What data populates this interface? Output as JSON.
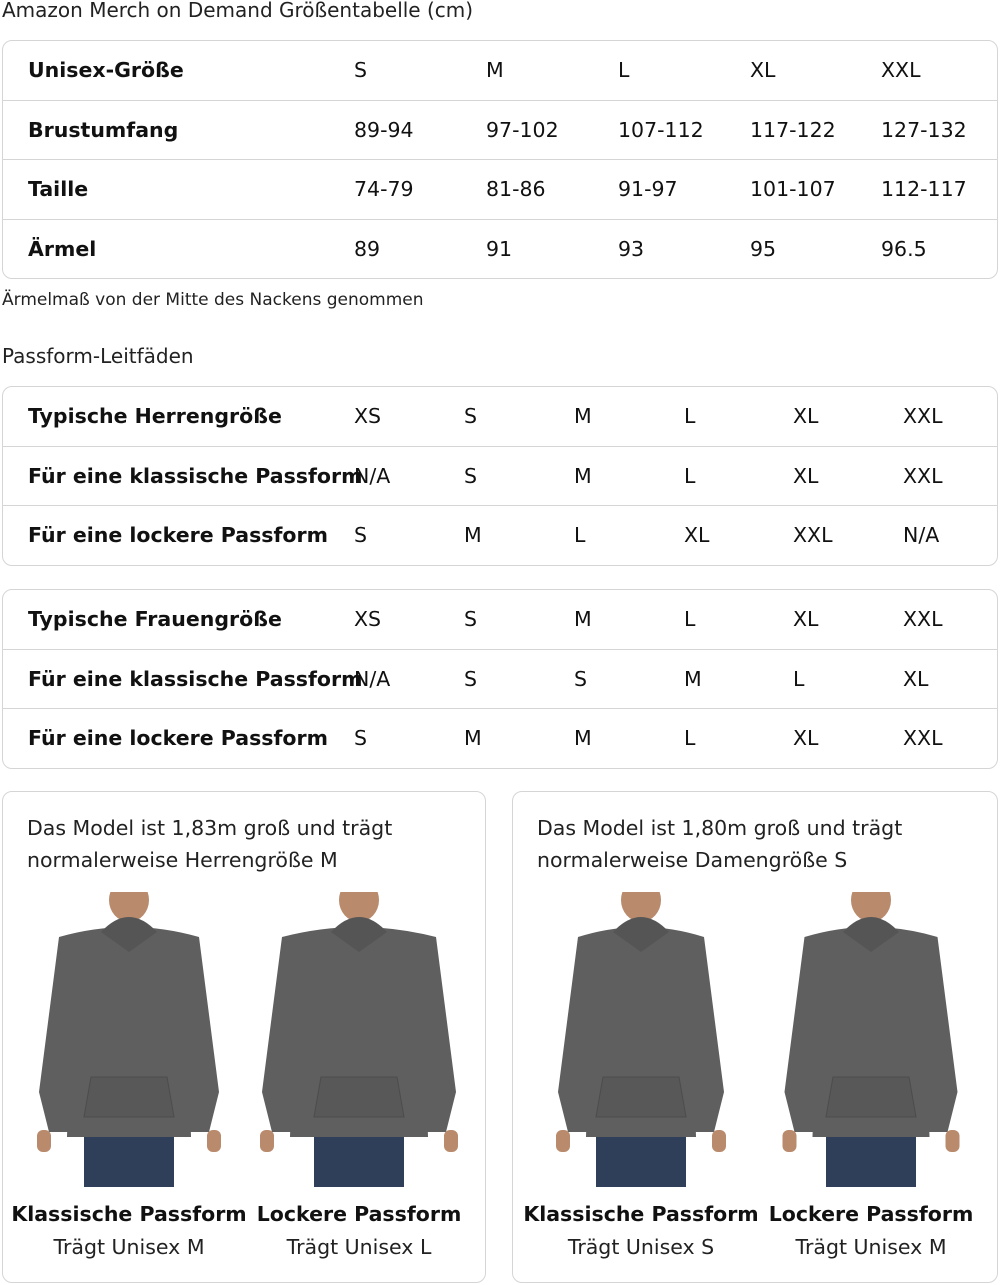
{
  "title": "Amazon Merch on Demand Größentabelle (cm)",
  "size_table": {
    "rows": [
      [
        "Unisex-Größe",
        "S",
        "M",
        "L",
        "XL",
        "XXL"
      ],
      [
        "Brustumfang",
        "89-94",
        "97-102",
        "107-112",
        "117-122",
        "127-132"
      ],
      [
        "Taille",
        "74-79",
        "81-86",
        "91-97",
        "101-107",
        "112-117"
      ],
      [
        "Ärmel",
        "89",
        "91",
        "93",
        "95",
        "96.5"
      ]
    ]
  },
  "sleeve_note": "Ärmelmaß von der Mitte des Nackens genommen",
  "fit_guides_title": "Passform-Leitfäden",
  "men_table": {
    "rows": [
      [
        "Typische Herrengröße",
        "XS",
        "S",
        "M",
        "L",
        "XL",
        "XXL"
      ],
      [
        "Für eine klassische Passform",
        "N/A",
        "S",
        "M",
        "L",
        "XL",
        "XXL"
      ],
      [
        "Für eine lockere Passform",
        "S",
        "M",
        "L",
        "XL",
        "XXL",
        "N/A"
      ]
    ]
  },
  "women_table": {
    "rows": [
      [
        "Typische Frauengröße",
        "XS",
        "S",
        "M",
        "L",
        "XL",
        "XXL"
      ],
      [
        "Für eine klassische Passform",
        "N/A",
        "S",
        "S",
        "M",
        "L",
        "XL"
      ],
      [
        "Für eine lockere Passform",
        "S",
        "M",
        "M",
        "L",
        "XL",
        "XXL"
      ]
    ]
  },
  "cards": [
    {
      "text_line1": "Das Model ist 1,83m groß und trägt",
      "text_line2": "normalerweise Herrengröße M",
      "models": [
        {
          "fit": "Klassische Passform",
          "wears": "Trägt Unisex M"
        },
        {
          "fit": "Lockere Passform",
          "wears": "Trägt Unisex L"
        }
      ]
    },
    {
      "text_line1": "Das Model ist 1,80m groß und trägt",
      "text_line2": "normalerweise Damengröße S",
      "models": [
        {
          "fit": "Klassische Passform",
          "wears": "Trägt Unisex S"
        },
        {
          "fit": "Lockere Passform",
          "wears": "Trägt Unisex M"
        }
      ]
    }
  ],
  "colors": {
    "hoodie": "#5f5f5f",
    "jeans": "#2f3f5a",
    "border": "#d5d5d5"
  }
}
